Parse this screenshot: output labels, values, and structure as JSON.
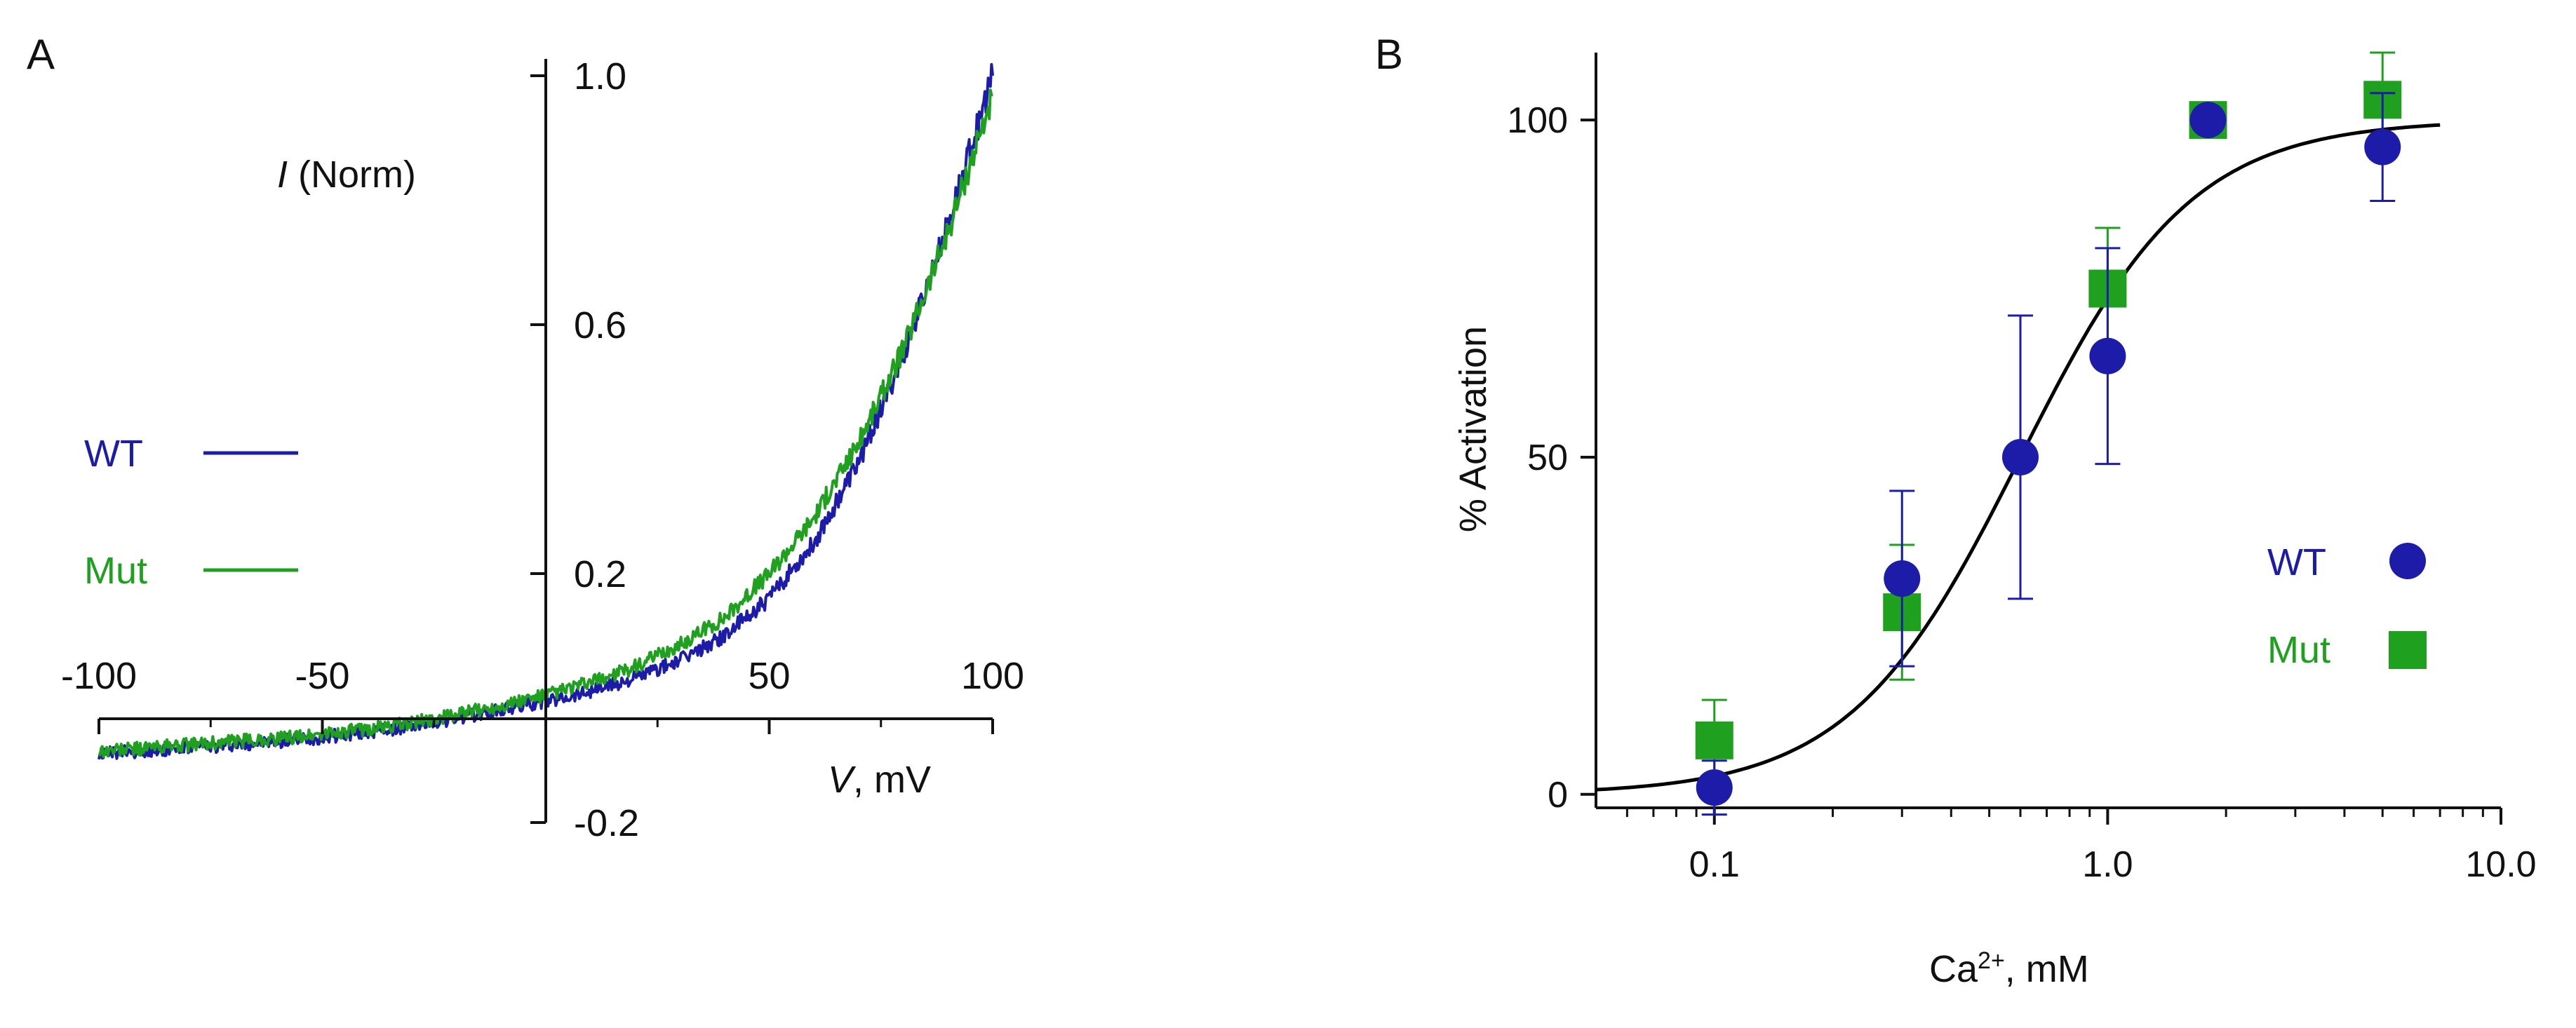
{
  "colors": {
    "wt": "#1c1ca8",
    "mut": "#1fa01f",
    "fit": "#000000",
    "axis": "#111111"
  },
  "chart_data": [
    {
      "type": "line",
      "panel_label": "A",
      "title": "",
      "xlabel_italic": "V",
      "xlabel_rest": ", mV",
      "ylabel_italic": "I",
      "ylabel_rest": " (Norm)",
      "xlim": [
        -100,
        100
      ],
      "ylim": [
        -0.2,
        1.0
      ],
      "xticks": [
        -100,
        -50,
        50,
        100
      ],
      "xtick_labels": [
        "-100",
        "-50",
        "50",
        "100"
      ],
      "yticks": [
        -0.2,
        0.2,
        0.6,
        1.0
      ],
      "ytick_labels": [
        "-0.2",
        "0.2",
        "0.6",
        "1.0"
      ],
      "legend": [
        {
          "name": "WT",
          "color": "#1c1ca8"
        },
        {
          "name": "Mut",
          "color": "#1fa01f"
        }
      ],
      "series": [
        {
          "name": "WT",
          "color": "#1c1ca8",
          "x": [
            -100,
            -90,
            -80,
            -70,
            -60,
            -50,
            -40,
            -30,
            -20,
            -10,
            0,
            10,
            20,
            30,
            40,
            50,
            60,
            70,
            80,
            90,
            100
          ],
          "y": [
            -0.09,
            -0.085,
            -0.08,
            -0.075,
            -0.07,
            -0.063,
            -0.055,
            -0.045,
            -0.033,
            -0.02,
            -0.005,
            0.012,
            0.032,
            0.06,
            0.1,
            0.16,
            0.25,
            0.38,
            0.55,
            0.76,
            1.0
          ]
        },
        {
          "name": "Mut",
          "color": "#1fa01f",
          "x": [
            -100,
            -90,
            -80,
            -70,
            -60,
            -50,
            -40,
            -30,
            -20,
            -10,
            0,
            10,
            20,
            30,
            40,
            50,
            60,
            70,
            80,
            90,
            100
          ],
          "y": [
            -0.085,
            -0.08,
            -0.075,
            -0.07,
            -0.065,
            -0.058,
            -0.05,
            -0.04,
            -0.027,
            -0.012,
            0.005,
            0.025,
            0.05,
            0.085,
            0.13,
            0.2,
            0.29,
            0.41,
            0.56,
            0.75,
            0.97
          ]
        }
      ]
    },
    {
      "type": "scatter",
      "panel_label": "B",
      "title": "",
      "xlabel_base": "Ca",
      "xlabel_sup": "2+",
      "xlabel_rest": ", mM",
      "ylabel": "% Activation",
      "xscale": "log",
      "xlim": [
        0.05,
        10.0
      ],
      "ylim": [
        -2,
        110
      ],
      "xticks": [
        0.1,
        1.0,
        10.0
      ],
      "xtick_labels": [
        "0.1",
        "1.0",
        "10.0"
      ],
      "yticks": [
        0,
        50,
        100
      ],
      "ytick_labels": [
        "0",
        "50",
        "100"
      ],
      "legend": [
        {
          "name": "WT",
          "color": "#1c1ca8",
          "marker": "circle"
        },
        {
          "name": "Mut",
          "color": "#1fa01f",
          "marker": "square"
        }
      ],
      "series": [
        {
          "name": "WT",
          "marker": "circle",
          "color": "#1c1ca8",
          "x": [
            0.1,
            0.3,
            0.6,
            1.0,
            1.8,
            5.0
          ],
          "y": [
            1,
            32,
            50,
            65,
            100,
            96
          ],
          "err": [
            4,
            13,
            21,
            16,
            0,
            8
          ]
        },
        {
          "name": "Mut",
          "marker": "square",
          "color": "#1fa01f",
          "x": [
            0.1,
            0.3,
            1.0,
            1.8,
            5.0
          ],
          "y": [
            8,
            27,
            75,
            100,
            103
          ],
          "err": [
            6,
            10,
            9,
            0,
            7
          ]
        }
      ],
      "fit": {
        "type": "hill",
        "ec50_mM": 0.6,
        "n_hill": 2.0,
        "max": 100,
        "x_range": [
          0.05,
          7.0
        ]
      }
    }
  ]
}
